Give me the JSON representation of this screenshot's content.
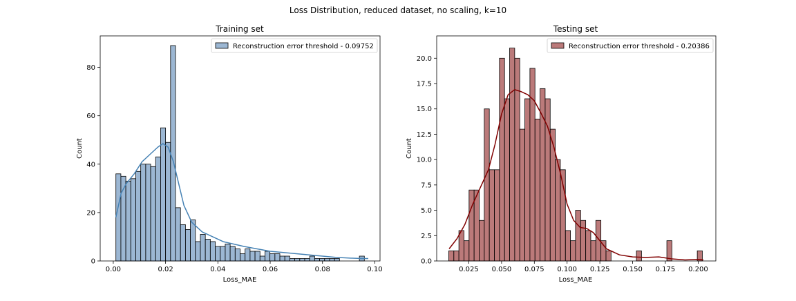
{
  "figure": {
    "suptitle": "Loss Distribution, reduced dataset, no scaling, k=10"
  },
  "chart_data": [
    {
      "type": "bar",
      "title": "Training set",
      "xlabel": "Loss_MAE",
      "ylabel": "Count",
      "xlim": [
        -0.005,
        0.102
      ],
      "ylim": [
        0,
        93
      ],
      "xticks": [
        0.0,
        0.02,
        0.04,
        0.06,
        0.08,
        0.1
      ],
      "xtick_labels": [
        "0.00",
        "0.02",
        "0.04",
        "0.06",
        "0.08",
        "0.10"
      ],
      "yticks": [
        0,
        20,
        40,
        60,
        80
      ],
      "ytick_labels": [
        "0",
        "20",
        "40",
        "60",
        "80"
      ],
      "legend_label": "Reconstruction error threshold - 0.09752",
      "legend_position": "top-right",
      "bar_color": "#7b9fc4",
      "bar_alpha": 0.75,
      "kde_color": "#4682b4",
      "bin_start": 0.001,
      "bin_width": 0.0019,
      "counts": [
        36,
        35,
        33,
        34,
        37,
        40,
        40,
        39,
        43,
        55,
        49,
        89,
        22,
        15,
        13,
        17,
        8,
        11,
        9,
        8,
        6,
        6,
        7,
        6,
        5,
        3,
        5,
        4,
        4,
        2,
        4,
        3,
        3,
        2,
        2,
        1,
        1,
        1,
        1,
        2,
        1,
        1,
        1,
        1,
        1,
        0,
        0,
        0,
        0,
        2
      ],
      "kde": {
        "x": [
          0.001,
          0.003,
          0.005,
          0.008,
          0.011,
          0.014,
          0.017,
          0.019,
          0.021,
          0.023,
          0.025,
          0.027,
          0.03,
          0.034,
          0.038,
          0.042,
          0.046,
          0.05,
          0.055,
          0.06,
          0.065,
          0.07,
          0.075,
          0.08,
          0.085,
          0.09,
          0.095,
          0.0975
        ],
        "y": [
          18,
          28,
          32,
          36,
          41,
          44,
          47,
          48.5,
          47,
          41,
          32,
          23,
          16,
          12,
          10,
          8,
          7,
          6,
          5,
          4,
          3.5,
          3,
          2.5,
          2,
          1.5,
          1.2,
          1.0,
          1.0
        ]
      }
    },
    {
      "type": "bar",
      "title": "Testing set",
      "xlabel": "Loss_MAE",
      "ylabel": "Count",
      "xlim": [
        0.0005,
        0.2135
      ],
      "ylim": [
        0,
        22.2
      ],
      "xticks": [
        0.025,
        0.05,
        0.075,
        0.1,
        0.125,
        0.15,
        0.175,
        0.2
      ],
      "xtick_labels": [
        "0.025",
        "0.050",
        "0.075",
        "0.100",
        "0.125",
        "0.150",
        "0.175",
        "0.200"
      ],
      "yticks": [
        0,
        2.5,
        5,
        7.5,
        10,
        12.5,
        15,
        17.5,
        20
      ],
      "ytick_labels": [
        "0.0",
        "2.5",
        "5.0",
        "7.5",
        "10.0",
        "12.5",
        "15.0",
        "17.5",
        "20.0"
      ],
      "legend_label": "Reconstruction error threshold - 0.20386",
      "legend_position": "top-right",
      "bar_color": "#a44d4d",
      "bar_alpha": 0.75,
      "kde_color": "#800000",
      "bin_start": 0.0097,
      "bin_width": 0.00387,
      "counts": [
        1,
        1,
        3,
        2,
        7,
        7,
        4,
        15,
        9,
        9,
        20,
        16,
        21,
        20,
        13,
        16,
        19,
        14,
        17,
        16,
        13,
        10,
        9,
        3,
        2,
        5,
        4,
        3,
        2,
        4,
        2,
        1,
        0,
        0,
        0,
        0,
        0,
        1,
        0,
        0,
        0,
        0,
        0,
        2,
        0,
        0,
        0,
        0,
        0,
        1
      ],
      "kde": {
        "x": [
          0.01,
          0.016,
          0.022,
          0.028,
          0.034,
          0.04,
          0.045,
          0.05,
          0.055,
          0.06,
          0.065,
          0.07,
          0.075,
          0.08,
          0.085,
          0.09,
          0.095,
          0.1,
          0.105,
          0.11,
          0.115,
          0.12,
          0.125,
          0.13,
          0.14,
          0.15,
          0.16,
          0.17,
          0.18,
          0.19,
          0.2,
          0.204
        ],
        "y": [
          1.2,
          2.2,
          3.6,
          5.6,
          7.3,
          9.0,
          11.5,
          14.5,
          16.4,
          16.9,
          16.7,
          16.4,
          15.8,
          14.6,
          13.3,
          11.2,
          8.6,
          5.6,
          4.0,
          3.3,
          3.2,
          2.8,
          2.0,
          1.2,
          0.6,
          0.4,
          0.35,
          0.4,
          0.2,
          0.1,
          0.15,
          0.1
        ]
      }
    }
  ]
}
